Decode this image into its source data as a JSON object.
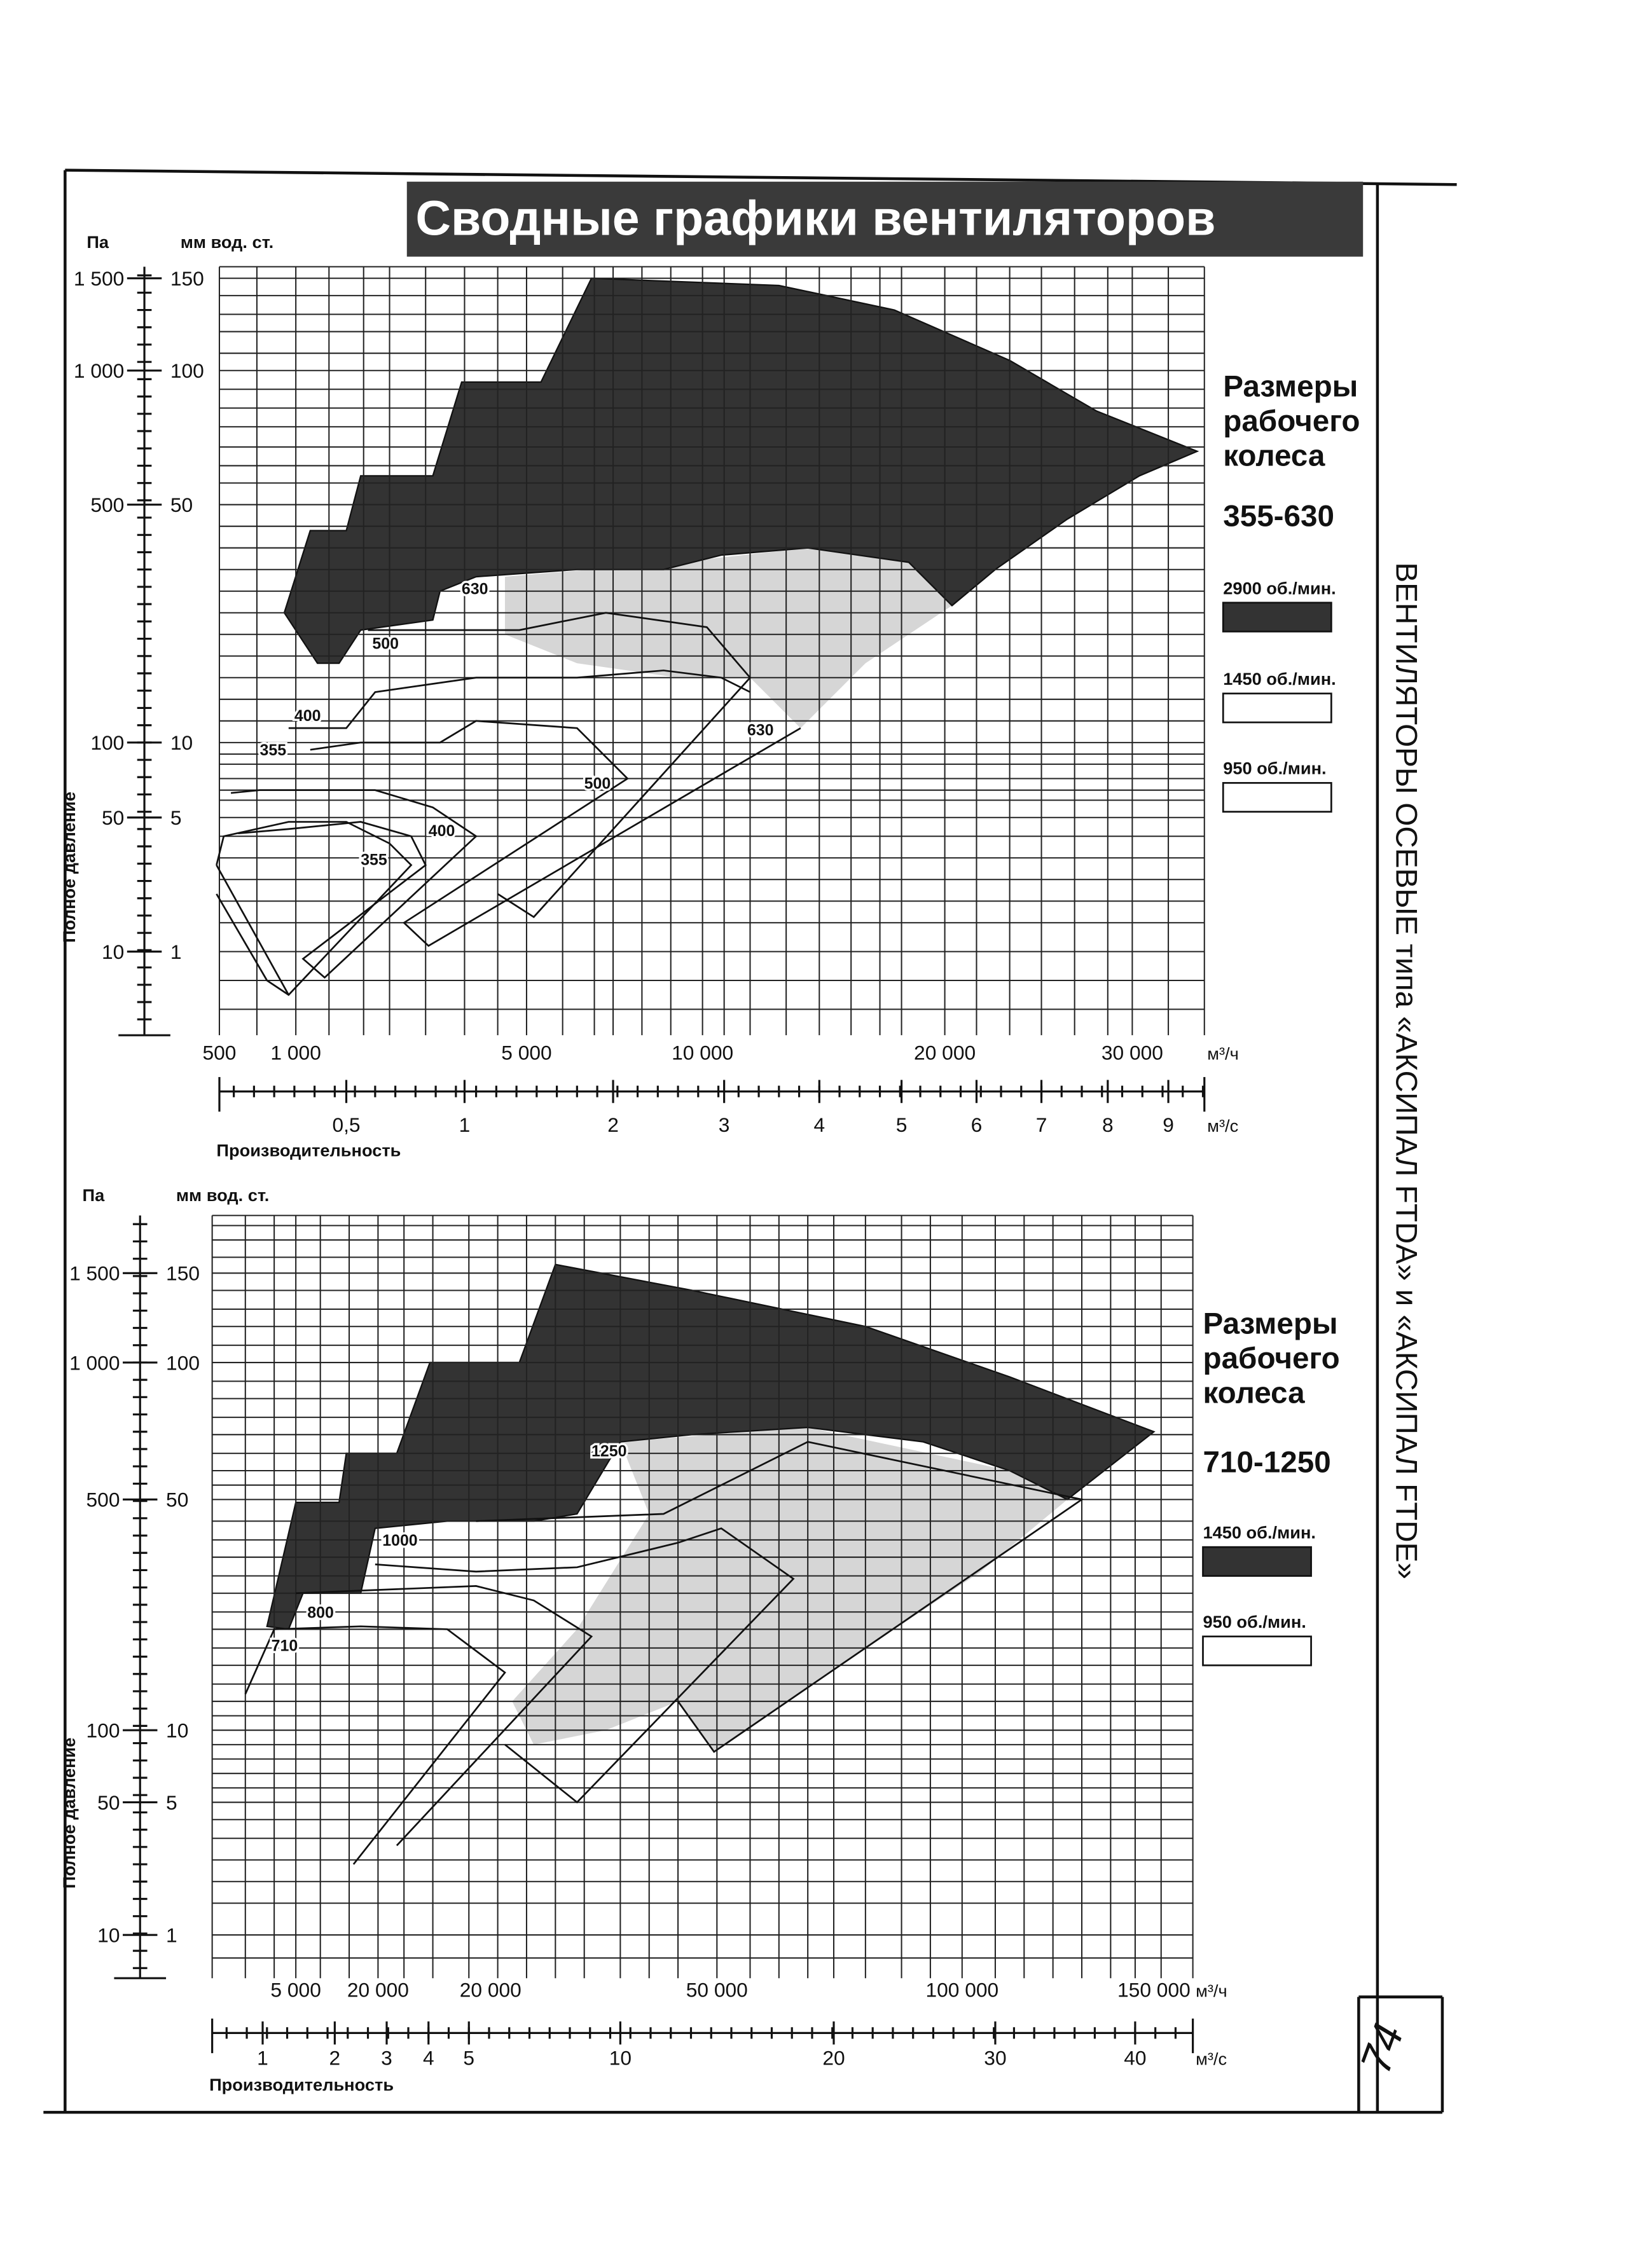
{
  "header": {
    "title": "Сводные графики вентиляторов"
  },
  "side_text": "ВЕНТИЛЯТОРЫ ОСЕВЫЕ типа «АКСИПАЛ FTDA» и «АКСИПАЛ FTDE»",
  "page_number": "74",
  "charts": [
    {
      "pa_unit": "Па",
      "mm_unit": "мм вод. ст.",
      "y_title": "Полное давление",
      "pa_ticks": [
        "1 500",
        "1 000",
        "500",
        "100",
        "50",
        "10"
      ],
      "mm_ticks": [
        "150",
        "100",
        "50",
        "10",
        "5",
        "1"
      ],
      "x1_ticks": [
        "500",
        "1 000",
        "5 000",
        "10 000",
        "20 000",
        "30 000"
      ],
      "x1_unit": "м³/ч",
      "x2_ticks": [
        "0,5",
        "1",
        "2",
        "3",
        "4",
        "5",
        "6",
        "7",
        "8",
        "9"
      ],
      "x2_unit": "м³/с",
      "x_title": "Производительность",
      "legend_title": [
        "Размеры",
        "рабочего",
        "колеса"
      ],
      "size_range": "355-630",
      "legend": [
        "2900 об./мин.",
        "1450 об./мин.",
        "950 об./мин."
      ],
      "region_labels": [
        "630",
        "500",
        "400",
        "355",
        "630",
        "500",
        "400",
        "355"
      ]
    },
    {
      "pa_unit": "Па",
      "mm_unit": "мм вод. ст.",
      "y_title": "Полное давление",
      "pa_ticks": [
        "1 500",
        "1 000",
        "500",
        "100",
        "50",
        "10"
      ],
      "mm_ticks": [
        "150",
        "100",
        "50",
        "10",
        "5",
        "1"
      ],
      "x1_ticks": [
        "5 000",
        "20 000",
        "20 000",
        "50 000",
        "100 000",
        "150 000"
      ],
      "x1_unit": "м³/ч",
      "x2_ticks": [
        "1",
        "2",
        "3",
        "4",
        "5",
        "10",
        "20",
        "30",
        "40"
      ],
      "x2_unit": "м³/с",
      "x_title": "Производительность",
      "legend_title": [
        "Размеры",
        "рабочего",
        "колеса"
      ],
      "size_range": "710-1250",
      "legend": [
        "1450 об./мин.",
        "950 об./мин."
      ],
      "region_labels": [
        "1250",
        "1000",
        "800",
        "710"
      ]
    }
  ]
}
